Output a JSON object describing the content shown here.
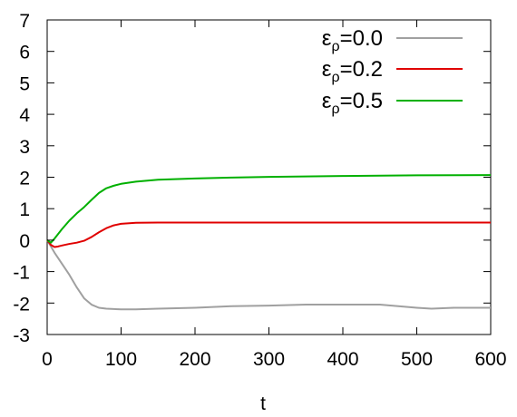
{
  "chart_data": {
    "type": "line",
    "title": "",
    "xlabel": "t",
    "ylabel": "",
    "xlim": [
      0,
      600
    ],
    "ylim": [
      -3,
      7
    ],
    "xticks": [
      0,
      100,
      200,
      300,
      400,
      500,
      600
    ],
    "yticks": [
      -3,
      -2,
      -1,
      0,
      1,
      2,
      3,
      4,
      5,
      6,
      7
    ],
    "grid": false,
    "legend_position": "top-right",
    "legend": [
      {
        "symbol": "ε",
        "subscript": "ρ",
        "value_text": "=0.0",
        "color": "#a0a0a0"
      },
      {
        "symbol": "ε",
        "subscript": "ρ",
        "value_text": "=0.2",
        "color": "#e00000"
      },
      {
        "symbol": "ε",
        "subscript": "ρ",
        "value_text": "=0.5",
        "color": "#00b000"
      }
    ],
    "series": [
      {
        "color": "#a0a0a0",
        "x": [
          0,
          10,
          20,
          30,
          40,
          50,
          60,
          70,
          80,
          100,
          120,
          150,
          200,
          250,
          300,
          350,
          400,
          450,
          500,
          520,
          550,
          600
        ],
        "y": [
          0,
          -0.4,
          -0.75,
          -1.1,
          -1.5,
          -1.85,
          -2.05,
          -2.15,
          -2.18,
          -2.2,
          -2.2,
          -2.18,
          -2.15,
          -2.1,
          -2.08,
          -2.05,
          -2.05,
          -2.05,
          -2.15,
          -2.18,
          -2.15,
          -2.15
        ]
      },
      {
        "color": "#e00000",
        "x": [
          0,
          5,
          10,
          15,
          20,
          30,
          40,
          50,
          60,
          70,
          80,
          90,
          100,
          120,
          150,
          200,
          300,
          400,
          500,
          600
        ],
        "y": [
          0,
          -0.15,
          -0.22,
          -0.2,
          -0.17,
          -0.12,
          -0.08,
          -0.02,
          0.1,
          0.25,
          0.38,
          0.47,
          0.52,
          0.55,
          0.56,
          0.56,
          0.56,
          0.56,
          0.56,
          0.56
        ]
      },
      {
        "color": "#00b000",
        "x": [
          0,
          5,
          10,
          20,
          30,
          40,
          50,
          60,
          70,
          80,
          90,
          100,
          120,
          150,
          200,
          250,
          300,
          400,
          500,
          600
        ],
        "y": [
          0,
          -0.08,
          0.05,
          0.35,
          0.62,
          0.85,
          1.05,
          1.28,
          1.5,
          1.65,
          1.73,
          1.79,
          1.86,
          1.92,
          1.96,
          1.99,
          2.01,
          2.04,
          2.06,
          2.07
        ]
      }
    ]
  }
}
